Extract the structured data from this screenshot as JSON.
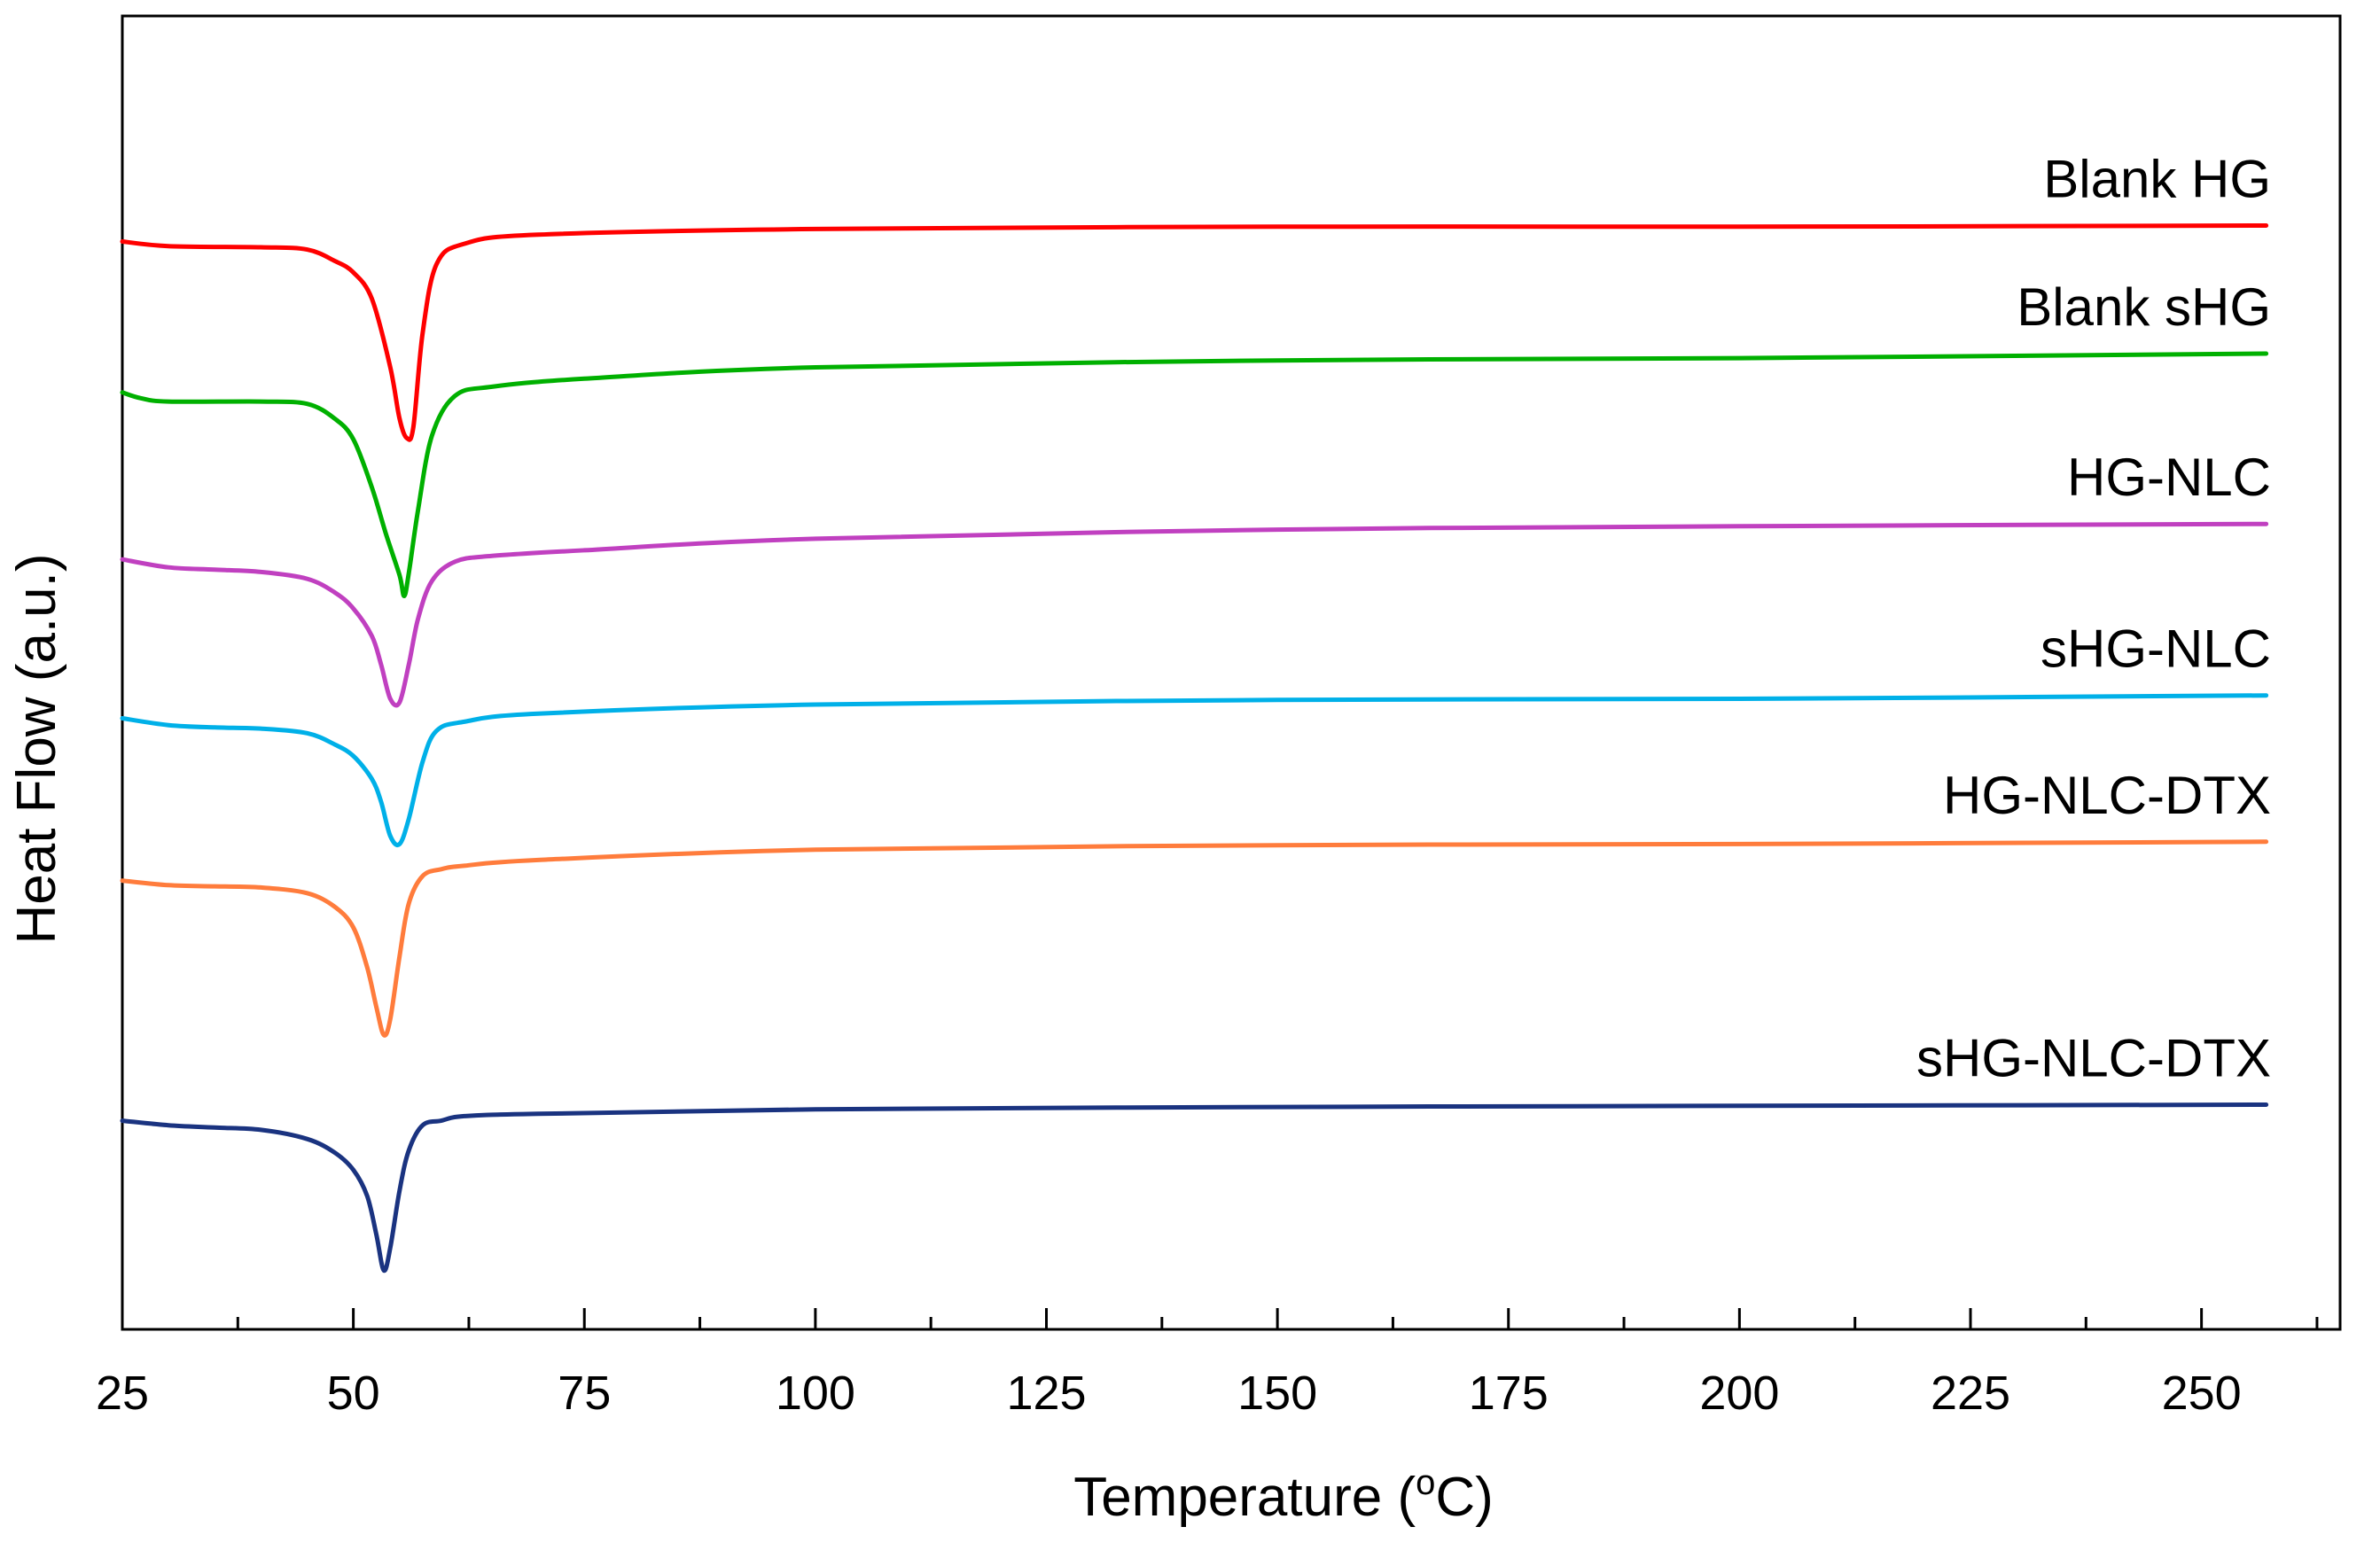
{
  "chart_data": {
    "type": "line",
    "title": "",
    "xlabel": "Temperature (",
    "xlabel_sup": "o",
    "xlabel_unit": "C)",
    "ylabel": "Heat Flow (a.u.)",
    "xlim": [
      25,
      265
    ],
    "ylim": [
      0,
      100
    ],
    "xticks": [
      25,
      50,
      75,
      100,
      125,
      150,
      175,
      200,
      225,
      250
    ],
    "xtick_labels": [
      "25",
      "50",
      "75",
      "100",
      "125",
      "150",
      "175",
      "200",
      "225",
      "250"
    ],
    "yticks": [],
    "grid": false,
    "legend": "inline-right",
    "series": [
      {
        "name": "Blank HG",
        "color": "#ff0000",
        "x": [
          25,
          30,
          40,
          45,
          48,
          50,
          52,
          54,
          55,
          55.8,
          56.5,
          57.5,
          59,
          62,
          70,
          100,
          150,
          200,
          257
        ],
        "y": [
          90.5,
          90.1,
          90.0,
          89.8,
          88.8,
          87.8,
          85.5,
          79.5,
          75.0,
          73.3,
          74.3,
          82.5,
          88.5,
          90.3,
          91.1,
          91.6,
          91.8,
          91.8,
          91.9
        ]
      },
      {
        "name": "Blank sHG",
        "color": "#00b000",
        "x": [
          25,
          27,
          30,
          40,
          45,
          48,
          50,
          52,
          53.5,
          55,
          55.5,
          56,
          57,
          58.5,
          61,
          65,
          75,
          100,
          150,
          200,
          257
        ],
        "y": [
          77.3,
          76.8,
          76.5,
          76.5,
          76.3,
          75.0,
          73.2,
          69.0,
          65.0,
          61.3,
          59.5,
          61.5,
          67.0,
          73.5,
          77.0,
          77.8,
          78.5,
          79.5,
          80.1,
          80.3,
          80.7
        ]
      },
      {
        "name": "HG-NLC",
        "color": "#c040c0",
        "x": [
          25,
          30,
          35,
          40,
          45,
          48,
          50,
          52,
          53,
          54,
          55,
          56,
          57,
          58.5,
          61,
          65,
          75,
          100,
          150,
          200,
          257
        ],
        "y": [
          62.7,
          62.0,
          61.8,
          61.6,
          61.0,
          59.8,
          58.4,
          56.0,
          53.5,
          50.5,
          50.2,
          53.5,
          57.5,
          60.8,
          62.5,
          63.0,
          63.5,
          64.5,
          65.3,
          65.6,
          65.8
        ]
      },
      {
        "name": "sHG-NLC",
        "color": "#00b0e8",
        "x": [
          25,
          30,
          35,
          40,
          45,
          48,
          50,
          52,
          53,
          54,
          55,
          56,
          57.5,
          59,
          62,
          70,
          100,
          150,
          200,
          257
        ],
        "y": [
          48.8,
          48.2,
          48.0,
          47.9,
          47.5,
          46.5,
          45.5,
          43.5,
          41.5,
          38.5,
          37.8,
          40.0,
          45.0,
          47.7,
          48.5,
          49.2,
          50.0,
          50.4,
          50.5,
          50.8
        ]
      },
      {
        "name": "HG-NLC-DTX",
        "color": "#ff7c3c",
        "x": [
          25,
          30,
          35,
          40,
          45,
          48,
          50,
          51.5,
          52.5,
          53.3,
          54,
          55,
          56,
          57.5,
          59.5,
          62,
          70,
          100,
          150,
          200,
          257
        ],
        "y": [
          34.6,
          34.2,
          34.1,
          34.0,
          33.5,
          32.3,
          30.5,
          27.0,
          23.5,
          21.1,
          22.5,
          28.0,
          32.6,
          35.0,
          35.6,
          35.9,
          36.4,
          37.3,
          37.7,
          37.8,
          38.0
        ]
      },
      {
        "name": "sHG-NLC-DTX",
        "color": "#1a3380",
        "x": [
          25,
          30,
          35,
          40,
          45,
          48,
          50,
          51.5,
          52.5,
          53.3,
          54,
          55,
          56,
          57.5,
          59.5,
          62,
          70,
          100,
          150,
          200,
          257
        ],
        "y": [
          13.6,
          13.2,
          13.0,
          12.8,
          12.0,
          10.8,
          9.3,
          7.0,
          3.6,
          0.5,
          2.5,
          7.5,
          11.0,
          13.2,
          13.6,
          14.0,
          14.2,
          14.6,
          14.8,
          14.9,
          15.0
        ]
      }
    ]
  },
  "style": {
    "axis_color": "#000000",
    "background": "#ffffff"
  }
}
